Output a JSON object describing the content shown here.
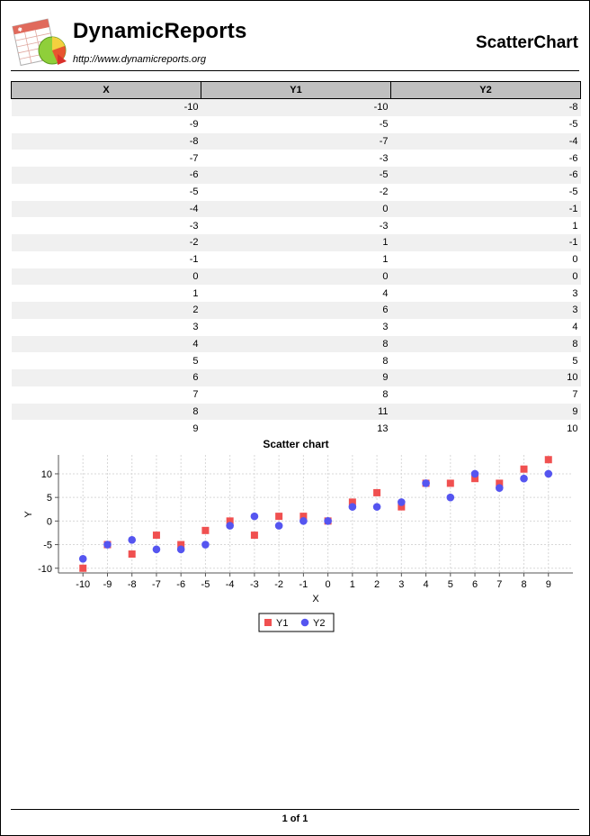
{
  "header": {
    "brand": "DynamicReports",
    "url": "http://www.dynamicreports.org",
    "report_title": "ScatterChart"
  },
  "table": {
    "columns": [
      "X",
      "Y1",
      "Y2"
    ],
    "rows": [
      [
        "-10",
        "-10",
        "-8"
      ],
      [
        "-9",
        "-5",
        "-5"
      ],
      [
        "-8",
        "-7",
        "-4"
      ],
      [
        "-7",
        "-3",
        "-6"
      ],
      [
        "-6",
        "-5",
        "-6"
      ],
      [
        "-5",
        "-2",
        "-5"
      ],
      [
        "-4",
        "0",
        "-1"
      ],
      [
        "-3",
        "-3",
        "1"
      ],
      [
        "-2",
        "1",
        "-1"
      ],
      [
        "-1",
        "1",
        "0"
      ],
      [
        "0",
        "0",
        "0"
      ],
      [
        "1",
        "4",
        "3"
      ],
      [
        "2",
        "6",
        "3"
      ],
      [
        "3",
        "3",
        "4"
      ],
      [
        "4",
        "8",
        "8"
      ],
      [
        "5",
        "8",
        "5"
      ],
      [
        "6",
        "9",
        "10"
      ],
      [
        "7",
        "8",
        "7"
      ],
      [
        "8",
        "11",
        "9"
      ],
      [
        "9",
        "13",
        "10"
      ]
    ]
  },
  "chart_data": {
    "type": "scatter",
    "title": "Scatter chart",
    "xlabel": "X",
    "ylabel": "Y",
    "x": [
      -10,
      -9,
      -8,
      -7,
      -6,
      -5,
      -4,
      -3,
      -2,
      -1,
      0,
      1,
      2,
      3,
      4,
      5,
      6,
      7,
      8,
      9
    ],
    "series": [
      {
        "name": "Y1",
        "marker": "square",
        "color": "#f05050",
        "values": [
          -10,
          -5,
          -7,
          -3,
          -5,
          -2,
          0,
          -3,
          1,
          1,
          0,
          4,
          6,
          3,
          8,
          8,
          9,
          8,
          11,
          13
        ]
      },
      {
        "name": "Y2",
        "marker": "circle",
        "color": "#5555f0",
        "values": [
          -8,
          -5,
          -4,
          -6,
          -6,
          -5,
          -1,
          1,
          -1,
          0,
          0,
          3,
          3,
          4,
          8,
          5,
          10,
          7,
          9,
          10
        ]
      }
    ],
    "xlim": [
      -11,
      10
    ],
    "ylim": [
      -11,
      14
    ],
    "yticks": [
      -10,
      -5,
      0,
      5,
      10
    ],
    "xticks": [
      -10,
      -9,
      -8,
      -7,
      -6,
      -5,
      -4,
      -3,
      -2,
      -1,
      0,
      1,
      2,
      3,
      4,
      5,
      6,
      7,
      8,
      9
    ],
    "grid": true,
    "legend": "bottom"
  },
  "footer": {
    "page_number": "1 of 1"
  }
}
